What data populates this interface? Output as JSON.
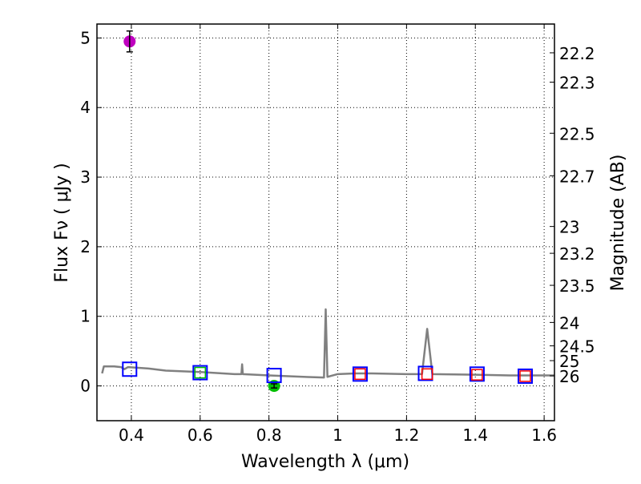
{
  "chart_data": {
    "type": "scatter",
    "xlabel": "Wavelength  λ (μm)",
    "ylabel": "Flux  Fν  ( μJy )",
    "ylabel_right": "Magnitude (AB)",
    "xlim": [
      0.3,
      1.63
    ],
    "ylim": [
      -0.5,
      5.2
    ],
    "grid": true,
    "x_ticks": [
      "0.4",
      "0.6",
      "0.8",
      "1",
      "1.2",
      "1.4",
      "1.6"
    ],
    "x_tick_values": [
      0.4,
      0.6,
      0.8,
      1.0,
      1.2,
      1.4,
      1.6
    ],
    "y_ticks": [
      "0",
      "1",
      "2",
      "3",
      "4",
      "5"
    ],
    "y_tick_values": [
      0,
      1,
      2,
      3,
      4,
      5
    ],
    "right_ticks": [
      "22.2",
      "22.3",
      "22.5",
      "22.7",
      "23",
      "23.2",
      "23.5",
      "24",
      "24.5",
      "25",
      "26"
    ],
    "right_tick_values": [
      22.2,
      22.3,
      22.5,
      22.7,
      23,
      23.2,
      23.5,
      24,
      24.5,
      25,
      26
    ],
    "spectrum": {
      "color": "#808080",
      "x": [
        0.315,
        0.32,
        0.35,
        0.37,
        0.38,
        0.39,
        0.45,
        0.5,
        0.55,
        0.6,
        0.7,
        0.72,
        0.722,
        0.724,
        0.8,
        0.9,
        0.96,
        0.965,
        0.97,
        1.0,
        1.05,
        1.1,
        1.2,
        1.245,
        1.26,
        1.275,
        1.4,
        1.5,
        1.63
      ],
      "y": [
        0.18,
        0.28,
        0.28,
        0.27,
        0.24,
        0.27,
        0.25,
        0.22,
        0.21,
        0.2,
        0.17,
        0.17,
        0.31,
        0.17,
        0.15,
        0.13,
        0.12,
        1.1,
        0.13,
        0.17,
        0.18,
        0.18,
        0.17,
        0.17,
        0.82,
        0.17,
        0.16,
        0.15,
        0.15
      ]
    },
    "series": [
      {
        "name": "observed-magenta",
        "marker": "circle",
        "color": "#bf00bf",
        "x": [
          0.395
        ],
        "y": [
          4.95
        ],
        "err": [
          0.15
        ]
      },
      {
        "name": "observed-green",
        "marker": "circle",
        "color": "#00bf00",
        "x": [
          0.815
        ],
        "y": [
          0.0
        ],
        "err": [
          0.03
        ]
      },
      {
        "name": "model-blue",
        "marker": "square-open-large",
        "color": "#0000ff",
        "x": [
          0.395,
          0.6,
          0.815,
          1.065,
          1.255,
          1.405,
          1.545
        ],
        "y": [
          0.24,
          0.19,
          0.15,
          0.17,
          0.18,
          0.17,
          0.14
        ]
      },
      {
        "name": "model-green",
        "marker": "square-open-small",
        "color": "#00bf00",
        "x": [
          0.6
        ],
        "y": [
          0.19
        ]
      },
      {
        "name": "model-red",
        "marker": "square-open-small",
        "color": "#ff0000",
        "x": [
          1.065,
          1.26,
          1.405,
          1.545
        ],
        "y": [
          0.17,
          0.17,
          0.16,
          0.14
        ]
      }
    ]
  }
}
